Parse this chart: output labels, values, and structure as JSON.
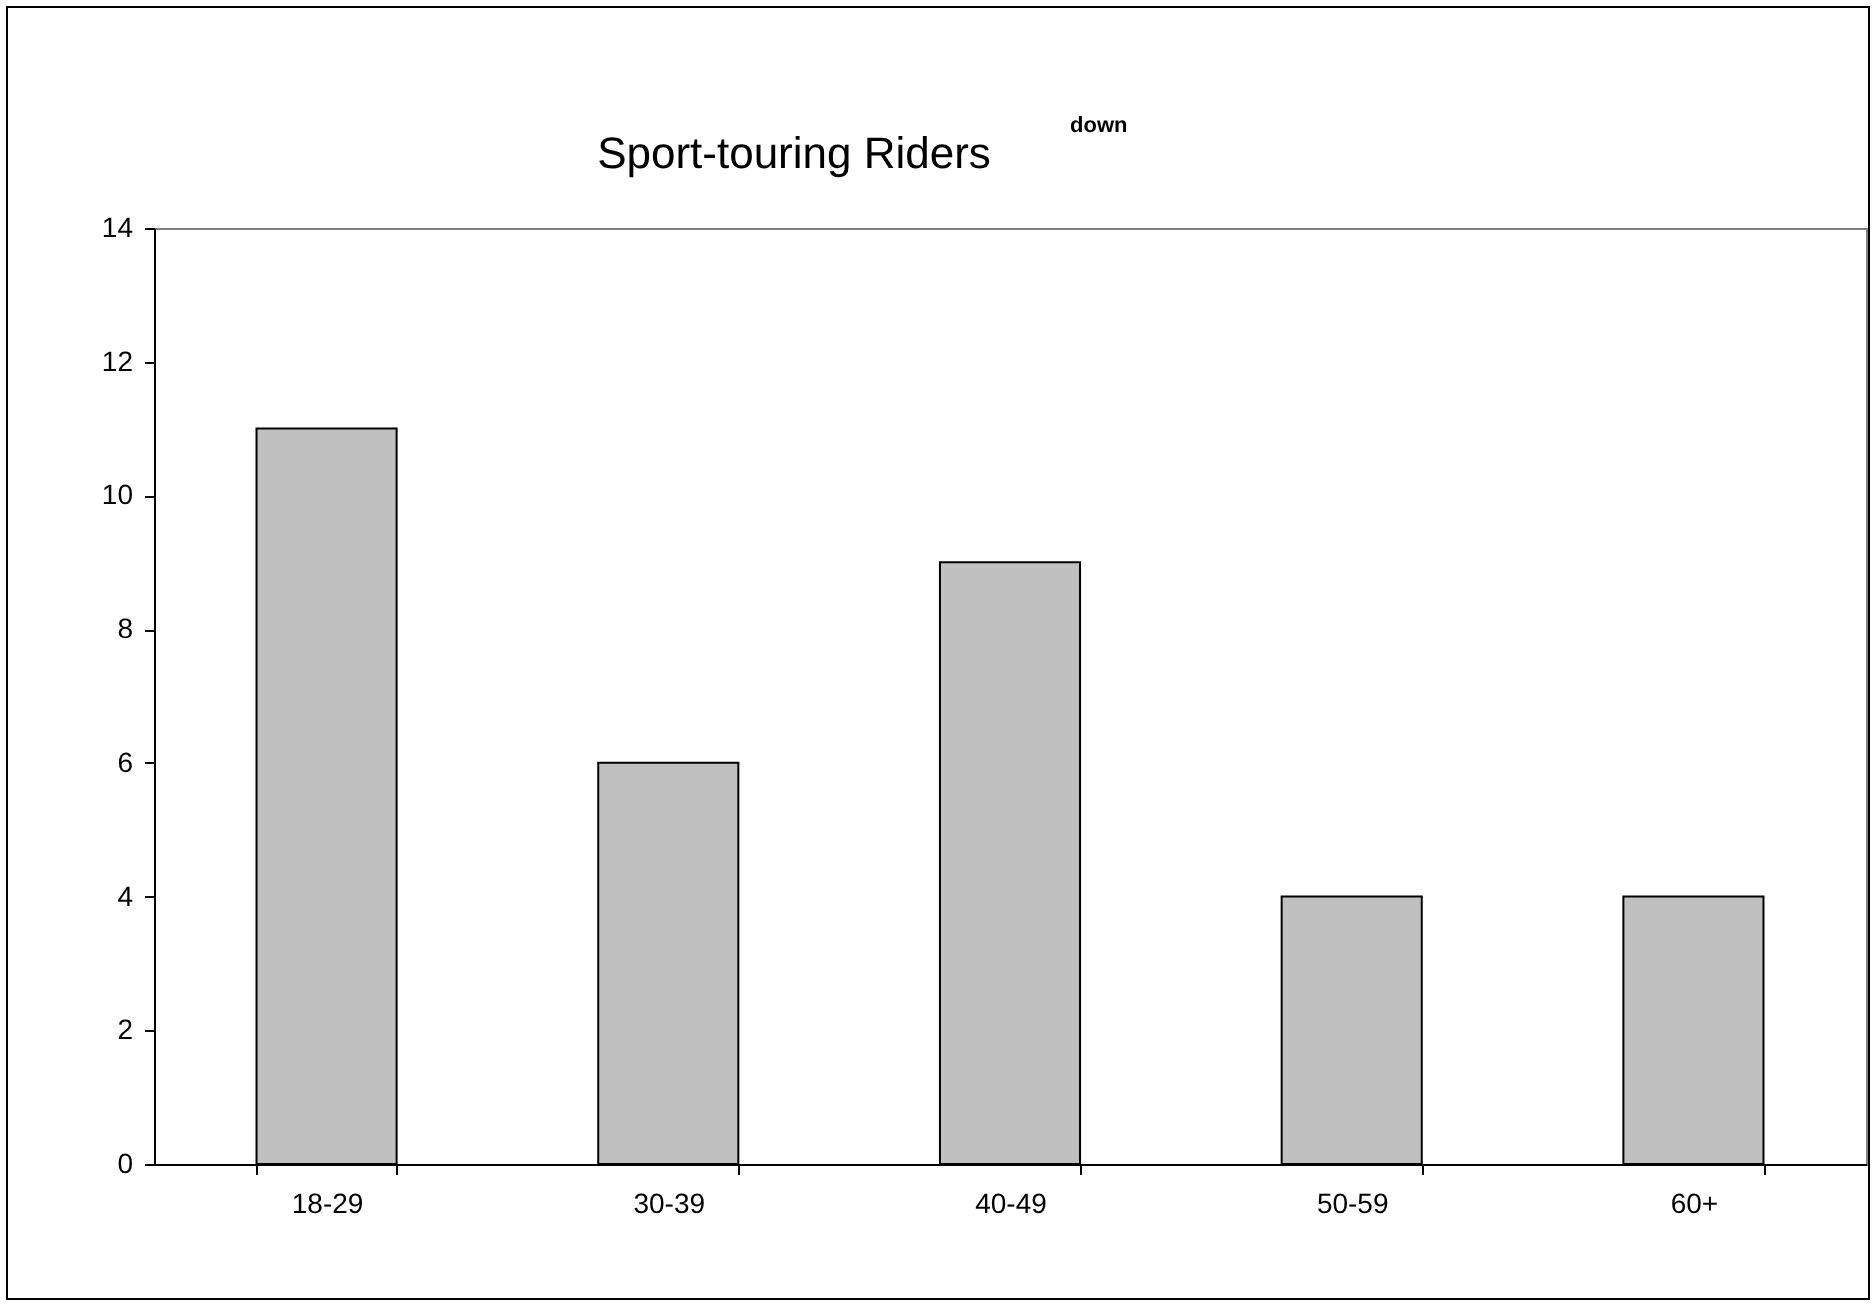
{
  "chart_data": {
    "type": "bar",
    "title": "Sport-touring Riders",
    "annotations": [
      "down"
    ],
    "categories": [
      "18-29",
      "30-39",
      "40-49",
      "50-59",
      "60+"
    ],
    "values": [
      11,
      6,
      9,
      4,
      4
    ],
    "color": "#c0c0c0",
    "ylim": [
      0,
      14
    ],
    "yticks": [
      0,
      2,
      4,
      6,
      8,
      10,
      12,
      14
    ],
    "grid": false
  }
}
